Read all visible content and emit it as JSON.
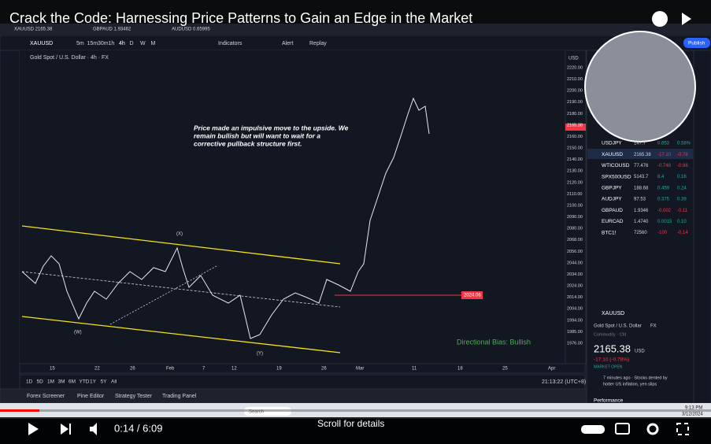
{
  "video": {
    "title": "Crack the Code: Harnessing Price Patterns to Gain an Edge in the Market",
    "time": "0:14 / 6:09",
    "scroll_hint": "Scroll for details"
  },
  "tabs": [
    "XAUUSD 2165.38",
    "GBPAUD 1.93462",
    "AUDUSD 0.65995"
  ],
  "toolbar": {
    "symbol": "XAUUSD",
    "intervals": [
      "5m",
      "15m",
      "30m",
      "1h",
      "4h",
      "D",
      "W",
      "M"
    ],
    "indicators": "Indicators",
    "alert": "Alert",
    "replay": "Replay",
    "publish": "Publish"
  },
  "chart": {
    "symbol_title": "Gold Spot / U.S. Dollar · 4h · FX",
    "annotation": [
      "Price made an impulsive move to the upside. We",
      "remain bullish but will want to wait for a",
      "corrective pullback structure first."
    ],
    "bias": "Directional Bias: Bullish",
    "level": "2024.06",
    "wave_labels": [
      "(X)",
      "(W)",
      "(Y)"
    ],
    "currency": "USD",
    "price_axis": [
      "2220.00",
      "2210.00",
      "2200.00",
      "2190.00",
      "2180.00",
      "2165.38",
      "2160.00",
      "2150.00",
      "2140.00",
      "2130.00",
      "2120.00",
      "2110.00",
      "2100.00",
      "2090.00",
      "2080.00",
      "2068.00",
      "2056.00",
      "2044.00",
      "2034.00",
      "2024.00",
      "2014.00",
      "2004.00",
      "1994.00",
      "1985.00",
      "1976.00"
    ],
    "time_axis": [
      "15",
      "22",
      "26",
      "Feb",
      "7",
      "12",
      "19",
      "26",
      "Mar",
      "11",
      "18",
      "25",
      "Apr"
    ]
  },
  "ranges": [
    "1D",
    "5D",
    "1M",
    "3M",
    "6M",
    "YTD",
    "1Y",
    "5Y",
    "All"
  ],
  "clock": "21:13:22 (UTC+8)",
  "bottom_tabs": [
    "Forex Screener",
    "Pine Editor",
    "Strategy Tester",
    "Trading Panel"
  ],
  "watchlist": [
    [
      "USDJPY",
      "147.7",
      "0.853",
      "0.58%"
    ],
    [
      "XAUUSD",
      "2165.38",
      "-17.10",
      "-0.78"
    ],
    [
      "WTICOUSD",
      "77.476",
      "-0.748",
      "-0.96"
    ],
    [
      "SPX500USD",
      "5143.7",
      "8.4",
      "0.16"
    ],
    [
      "GBPJPY",
      "188.68",
      "0.459",
      "0.24"
    ],
    [
      "AUDJPY",
      "97.53",
      "0.375",
      "0.39"
    ],
    [
      "GBPAUD",
      "1.9346",
      "-0.002",
      "-0.11"
    ],
    [
      "EURCAD",
      "1.4740",
      "0.0015",
      "0.10"
    ],
    [
      "BTC1!",
      "72560",
      "-100",
      "-0.14"
    ]
  ],
  "details": {
    "symbol": "XAUUSD",
    "name": "Gold Spot / U.S. Dollar",
    "market": "FX",
    "type": "Commodity · Cfd",
    "price": "2165.38",
    "currency": "USD",
    "change": "-17.10 (-0.78%)",
    "status": "MARKET OPEN",
    "news": [
      "7 minutes ago · Stocks dented by",
      "hotter US inflation, yen slips"
    ],
    "performance": "Performance"
  },
  "taskbar": {
    "search": "Search",
    "time": "9:13 PM",
    "date": "3/12/2024"
  }
}
